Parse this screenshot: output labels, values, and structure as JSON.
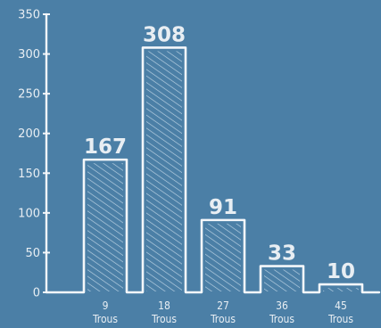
{
  "chart_data": {
    "type": "bar",
    "categories": [
      [
        "9",
        "Trous"
      ],
      [
        "18",
        "Trous"
      ],
      [
        "27",
        "Trous"
      ],
      [
        "36",
        "Trous"
      ],
      [
        "45",
        "Trous"
      ]
    ],
    "values": [
      167,
      308,
      91,
      33,
      10
    ],
    "data_labels": [
      "167",
      "308",
      "91",
      "33",
      "10"
    ],
    "y_ticks": [
      "0",
      "50",
      "100",
      "150",
      "200",
      "250",
      "300",
      "350"
    ],
    "ylim": [
      0,
      350
    ],
    "grid": false,
    "legend": "none",
    "colors": {
      "background": "#4b7fa6",
      "ink": "#f4f7fa",
      "hatch": "#bcd3e4",
      "text": "#e8eef3"
    }
  }
}
